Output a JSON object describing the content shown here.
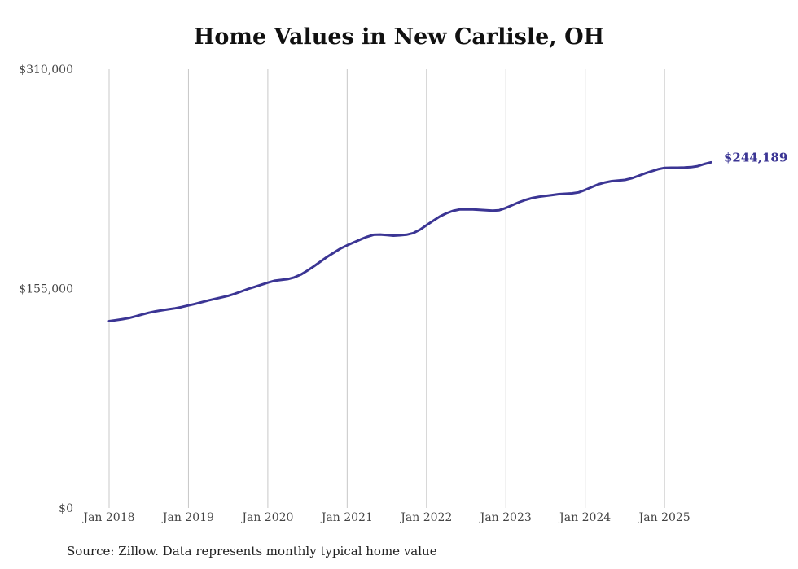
{
  "chart_data": {
    "type": "line",
    "title": "Home Values in New Carlisle, OH",
    "xlabel": "",
    "ylabel": "",
    "ylim": [
      0,
      310000
    ],
    "y_ticks": [
      "$0",
      "$155,000",
      "$310,000"
    ],
    "y_tick_values": [
      0,
      155000,
      310000
    ],
    "x_ticks": [
      "Jan 2018",
      "Jan 2019",
      "Jan 2020",
      "Jan 2021",
      "Jan 2022",
      "Jan 2023",
      "Jan 2024",
      "Jan 2025"
    ],
    "x_range": [
      "2018-01",
      "2025-08"
    ],
    "grid": "vertical",
    "line_color": "#3b3594",
    "end_label": "$244,189",
    "series": [
      {
        "x": [
          "2018-01",
          "2018-02",
          "2018-03",
          "2018-04",
          "2018-05",
          "2018-06",
          "2018-07",
          "2018-08",
          "2018-09",
          "2018-10",
          "2018-11",
          "2018-12",
          "2019-01",
          "2019-02",
          "2019-03",
          "2019-04",
          "2019-05",
          "2019-06",
          "2019-07",
          "2019-08",
          "2019-09",
          "2019-10",
          "2019-11",
          "2019-12",
          "2020-01",
          "2020-02",
          "2020-03",
          "2020-04",
          "2020-05",
          "2020-06",
          "2020-07",
          "2020-08",
          "2020-09",
          "2020-10",
          "2020-11",
          "2020-12",
          "2021-01",
          "2021-02",
          "2021-03",
          "2021-04",
          "2021-05",
          "2021-06",
          "2021-07",
          "2021-08",
          "2021-09",
          "2021-10",
          "2021-11",
          "2021-12",
          "2022-01",
          "2022-02",
          "2022-03",
          "2022-04",
          "2022-05",
          "2022-06",
          "2022-07",
          "2022-08",
          "2022-09",
          "2022-10",
          "2022-11",
          "2022-12",
          "2023-01",
          "2023-02",
          "2023-03",
          "2023-04",
          "2023-05",
          "2023-06",
          "2023-07",
          "2023-08",
          "2023-09",
          "2023-10",
          "2023-11",
          "2023-12",
          "2024-01",
          "2024-02",
          "2024-03",
          "2024-04",
          "2024-05",
          "2024-06",
          "2024-07",
          "2024-08",
          "2024-09",
          "2024-10",
          "2024-11",
          "2024-12",
          "2025-01",
          "2025-02",
          "2025-03",
          "2025-04",
          "2025-05",
          "2025-06",
          "2025-07",
          "2025-08"
        ],
        "values": [
          132000,
          132700,
          133400,
          134200,
          135400,
          136700,
          137900,
          138900,
          139700,
          140400,
          141100,
          142000,
          143100,
          144200,
          145400,
          146600,
          147700,
          148800,
          149900,
          151300,
          153000,
          154700,
          156200,
          157700,
          159200,
          160500,
          161100,
          161700,
          162900,
          164900,
          167700,
          170800,
          174200,
          177500,
          180400,
          183300,
          185600,
          187600,
          189700,
          191600,
          193000,
          193200,
          192800,
          192400,
          192700,
          193100,
          194200,
          196600,
          199800,
          202900,
          205900,
          208200,
          209900,
          210900,
          210900,
          210900,
          210700,
          210400,
          210100,
          210400,
          212000,
          214000,
          216000,
          217700,
          219000,
          219900,
          220500,
          221100,
          221700,
          222000,
          222300,
          223000,
          224700,
          226700,
          228700,
          230000,
          230900,
          231300,
          231800,
          232900,
          234600,
          236300,
          237900,
          239300,
          240300,
          240400,
          240400,
          240500,
          240800,
          241500,
          243000,
          244189
        ]
      }
    ]
  },
  "footer": {
    "source": "Source: Zillow. Data represents monthly typical home value"
  }
}
